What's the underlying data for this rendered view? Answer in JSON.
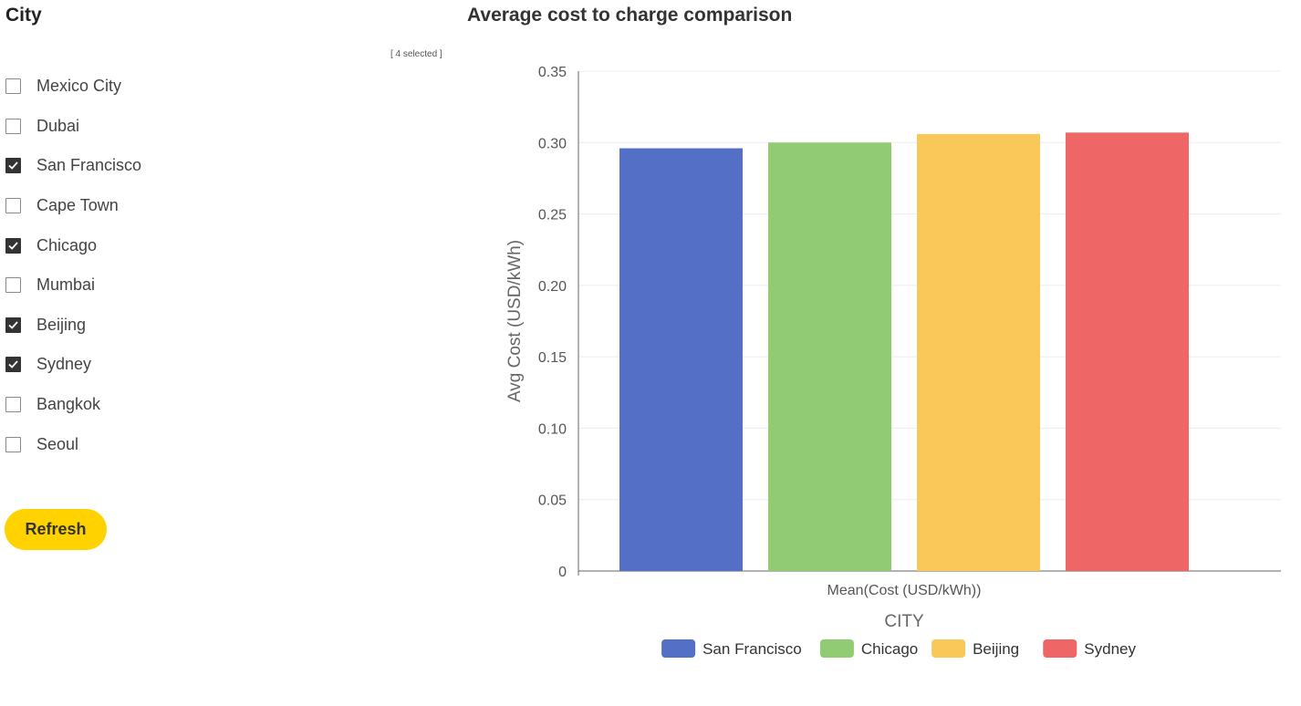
{
  "filter": {
    "heading": "City",
    "selected_count": "[ 4 selected ]",
    "items": [
      {
        "label": "Mexico City",
        "checked": false
      },
      {
        "label": "Dubai",
        "checked": false
      },
      {
        "label": "San Francisco",
        "checked": true
      },
      {
        "label": "Cape Town",
        "checked": false
      },
      {
        "label": "Chicago",
        "checked": true
      },
      {
        "label": "Mumbai",
        "checked": false
      },
      {
        "label": "Beijing",
        "checked": true
      },
      {
        "label": "Sydney",
        "checked": true
      },
      {
        "label": "Bangkok",
        "checked": false
      },
      {
        "label": "Seoul",
        "checked": false
      }
    ],
    "refresh_label": "Refresh"
  },
  "chart_data": {
    "type": "bar",
    "title": "Average cost to charge comparison",
    "category_label": "Mean(Cost (USD/kWh))",
    "xlabel": "CITY",
    "ylabel": "Avg Cost (USD/kWh)",
    "ylim": [
      0,
      0.35
    ],
    "yticks": [
      "0",
      "0.05",
      "0.10",
      "0.15",
      "0.20",
      "0.25",
      "0.30",
      "0.35"
    ],
    "grid": true,
    "legend_position": "bottom",
    "series": [
      {
        "name": "San Francisco",
        "value": 0.296,
        "color": "#5470c6"
      },
      {
        "name": "Chicago",
        "value": 0.3,
        "color": "#91cc75"
      },
      {
        "name": "Beijing",
        "value": 0.306,
        "color": "#fac858"
      },
      {
        "name": "Sydney",
        "value": 0.307,
        "color": "#ee6666"
      }
    ]
  }
}
